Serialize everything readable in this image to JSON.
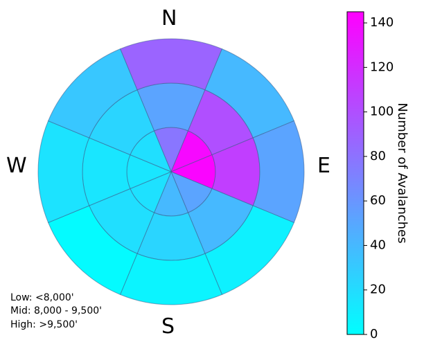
{
  "chart_data": {
    "type": "polar-heatmap",
    "aspects": [
      "N",
      "NE",
      "E",
      "SE",
      "S",
      "SW",
      "W",
      "NW"
    ],
    "compass_labels": {
      "north": "N",
      "east": "E",
      "south": "S",
      "west": "W"
    },
    "elevation_bands": [
      "Low",
      "Mid",
      "High"
    ],
    "values": {
      "Low": {
        "N": 78,
        "NE": 140,
        "E": 142,
        "SE": 52,
        "S": 40,
        "SW": 17,
        "W": 14,
        "NW": 18
      },
      "Mid": {
        "N": 52,
        "NE": 100,
        "E": 110,
        "SE": 40,
        "S": 24,
        "SW": 18,
        "W": 14,
        "NW": 24
      },
      "High": {
        "N": 88,
        "NE": 40,
        "E": 52,
        "SE": 8,
        "S": 6,
        "SW": 2,
        "W": 16,
        "NW": 32
      }
    },
    "colorbar": {
      "label": "Number of Avalanches",
      "min": 0,
      "max": 145,
      "ticks": [
        0,
        20,
        40,
        60,
        80,
        100,
        120,
        140
      ],
      "colormap": "cool",
      "color_min": "#00ffff",
      "color_max": "#ff00ff"
    },
    "legend_notes": [
      "Low: <8,000'",
      "Mid: 8,000 - 9,500'",
      "High: >9,500'"
    ]
  }
}
